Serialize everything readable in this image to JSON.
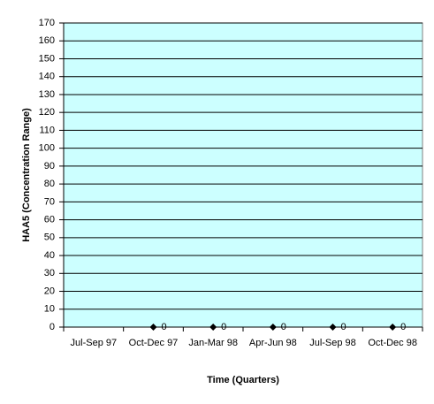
{
  "chart_data": {
    "type": "line",
    "x_label": "Time (Quarters)",
    "y_label": "HAA5 (Concentration Range)",
    "categories": [
      "Jul-Sep 97",
      "Oct-Dec 97",
      "Jan-Mar 98",
      "Apr-Jun 98",
      "Jul-Sep 98",
      "Oct-Dec 98"
    ],
    "values": [
      null,
      0,
      0,
      0,
      0,
      0
    ],
    "color": "#000000",
    "marker": "diamond",
    "data_labels": true,
    "plot_background": "#ccffff",
    "ylim": [
      0,
      170
    ],
    "yticks": [
      0,
      10,
      20,
      30,
      40,
      50,
      60,
      70,
      80,
      90,
      100,
      110,
      120,
      130,
      140,
      150,
      160,
      170
    ],
    "grid": true
  }
}
